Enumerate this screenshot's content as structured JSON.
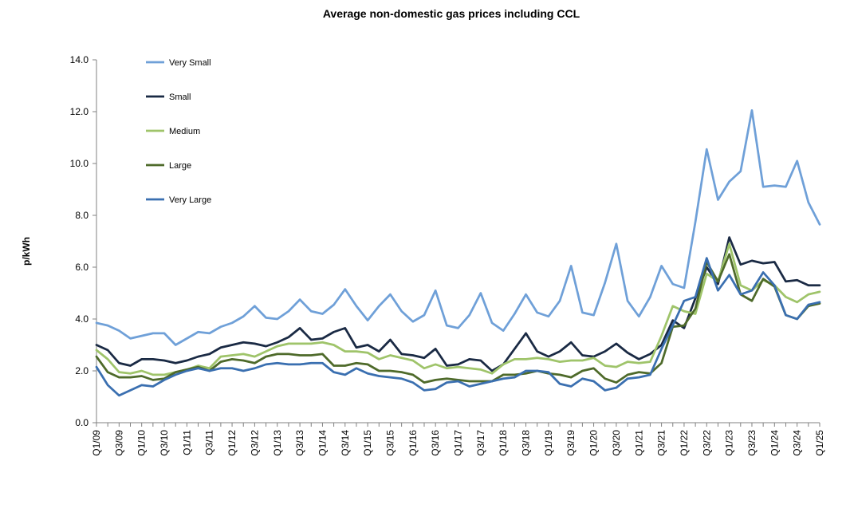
{
  "chart_data": {
    "type": "line",
    "title": "Average non-domestic gas prices including CCL",
    "xlabel": "",
    "ylabel": "p/kWh",
    "ylim": [
      0,
      14
    ],
    "yticks": [
      "0.0",
      "2.0",
      "4.0",
      "6.0",
      "8.0",
      "10.0",
      "12.0",
      "14.0"
    ],
    "grid": false,
    "legend_position": "top-left",
    "x": [
      "Q1/09",
      "Q2/09",
      "Q3/09",
      "Q4/09",
      "Q1/10",
      "Q2/10",
      "Q3/10",
      "Q4/10",
      "Q1/11",
      "Q2/11",
      "Q3/11",
      "Q4/11",
      "Q1/12",
      "Q2/12",
      "Q3/12",
      "Q4/12",
      "Q1/13",
      "Q2/13",
      "Q3/13",
      "Q4/13",
      "Q1/14",
      "Q2/14",
      "Q3/14",
      "Q4/14",
      "Q1/15",
      "Q2/15",
      "Q3/15",
      "Q4/15",
      "Q1/16",
      "Q2/16",
      "Q3/16",
      "Q4/16",
      "Q1/17",
      "Q2/17",
      "Q3/17",
      "Q4/17",
      "Q1/18",
      "Q2/18",
      "Q3/18",
      "Q4/18",
      "Q1/19",
      "Q2/19",
      "Q3/19",
      "Q4/19",
      "Q1/20",
      "Q2/20",
      "Q3/20",
      "Q4/20",
      "Q1/21",
      "Q2/21",
      "Q3/21",
      "Q4/21",
      "Q1/22",
      "Q2/22",
      "Q3/22",
      "Q4/22",
      "Q1/23",
      "Q2/23",
      "Q3/23",
      "Q4/23",
      "Q1/24",
      "Q2/24",
      "Q3/24",
      "Q4/24",
      "Q1/25"
    ],
    "xtick_labels": [
      "Q1/09",
      "Q3/09",
      "Q1/10",
      "Q3/10",
      "Q1/11",
      "Q3/11",
      "Q1/12",
      "Q3/12",
      "Q1/13",
      "Q3/13",
      "Q1/14",
      "Q3/14",
      "Q1/15",
      "Q3/15",
      "Q1/16",
      "Q3/16",
      "Q1/17",
      "Q3/17",
      "Q1/18",
      "Q3/18",
      "Q1/19",
      "Q3/19",
      "Q1/20",
      "Q3/20",
      "Q1/21",
      "Q3/21",
      "Q1/22",
      "Q3/22",
      "Q1/23",
      "Q3/23",
      "Q1/24",
      "Q3/24",
      "Q1/25"
    ],
    "series": [
      {
        "name": "Very Small",
        "color": "#6fa0d8",
        "values": [
          3.85,
          3.75,
          3.55,
          3.25,
          3.35,
          3.45,
          3.45,
          3.0,
          3.25,
          3.5,
          3.45,
          3.7,
          3.85,
          4.1,
          4.5,
          4.05,
          4.0,
          4.3,
          4.75,
          4.3,
          4.2,
          4.55,
          5.15,
          4.5,
          3.95,
          4.5,
          4.95,
          4.3,
          3.9,
          4.15,
          5.1,
          3.75,
          3.65,
          4.15,
          5.0,
          3.85,
          3.55,
          4.2,
          4.95,
          4.25,
          4.1,
          4.7,
          6.05,
          4.25,
          4.15,
          5.4,
          6.9,
          4.7,
          4.1,
          4.85,
          6.05,
          5.35,
          5.2,
          7.75,
          10.55,
          8.6,
          9.3,
          9.7,
          12.05,
          9.1,
          9.15,
          9.1,
          10.1,
          8.5,
          7.65
        ]
      },
      {
        "name": "Small",
        "color": "#1a2a44",
        "values": [
          3.0,
          2.8,
          2.3,
          2.2,
          2.45,
          2.45,
          2.4,
          2.3,
          2.4,
          2.55,
          2.65,
          2.9,
          3.0,
          3.1,
          3.05,
          2.95,
          3.1,
          3.3,
          3.65,
          3.2,
          3.25,
          3.5,
          3.65,
          2.9,
          3.0,
          2.75,
          3.2,
          2.65,
          2.6,
          2.5,
          2.85,
          2.2,
          2.25,
          2.45,
          2.4,
          2.0,
          2.25,
          2.85,
          3.45,
          2.75,
          2.55,
          2.75,
          3.1,
          2.6,
          2.55,
          2.75,
          3.05,
          2.7,
          2.45,
          2.65,
          3.0,
          3.95,
          3.65,
          4.8,
          6.0,
          5.35,
          7.15,
          6.1,
          6.25,
          6.15,
          6.2,
          5.45,
          5.5,
          5.3,
          5.3
        ]
      },
      {
        "name": "Medium",
        "color": "#9fc46a",
        "values": [
          2.8,
          2.45,
          1.95,
          1.9,
          2.0,
          1.85,
          1.85,
          1.95,
          2.05,
          2.2,
          2.1,
          2.55,
          2.6,
          2.65,
          2.55,
          2.75,
          2.95,
          3.05,
          3.05,
          3.05,
          3.1,
          3.0,
          2.75,
          2.75,
          2.7,
          2.45,
          2.6,
          2.5,
          2.4,
          2.1,
          2.25,
          2.1,
          2.15,
          2.1,
          2.05,
          1.9,
          2.25,
          2.45,
          2.45,
          2.5,
          2.45,
          2.35,
          2.4,
          2.4,
          2.5,
          2.2,
          2.15,
          2.35,
          2.3,
          2.35,
          3.35,
          4.5,
          4.3,
          4.2,
          5.75,
          5.45,
          6.9,
          5.3,
          5.1,
          5.5,
          5.3,
          4.85,
          4.65,
          4.95,
          5.05
        ]
      },
      {
        "name": "Large",
        "color": "#4e6a2a",
        "values": [
          2.55,
          1.95,
          1.75,
          1.75,
          1.8,
          1.65,
          1.7,
          1.95,
          2.05,
          2.15,
          2.0,
          2.35,
          2.45,
          2.4,
          2.3,
          2.55,
          2.65,
          2.65,
          2.6,
          2.6,
          2.65,
          2.2,
          2.2,
          2.3,
          2.25,
          2.0,
          2.0,
          1.95,
          1.85,
          1.55,
          1.65,
          1.7,
          1.65,
          1.6,
          1.6,
          1.6,
          1.85,
          1.85,
          1.9,
          2.0,
          1.9,
          1.85,
          1.75,
          2.0,
          2.1,
          1.7,
          1.55,
          1.85,
          1.95,
          1.9,
          2.3,
          3.7,
          3.75,
          4.4,
          6.2,
          5.45,
          6.5,
          4.95,
          4.7,
          5.55,
          5.25,
          4.15,
          4.0,
          4.5,
          4.6
        ]
      },
      {
        "name": "Very Large",
        "color": "#3a6fb0",
        "values": [
          2.15,
          1.45,
          1.05,
          1.25,
          1.45,
          1.4,
          1.65,
          1.85,
          2.0,
          2.1,
          2.0,
          2.1,
          2.1,
          2.0,
          2.1,
          2.25,
          2.3,
          2.25,
          2.25,
          2.3,
          2.3,
          1.95,
          1.85,
          2.1,
          1.9,
          1.8,
          1.75,
          1.7,
          1.55,
          1.25,
          1.3,
          1.55,
          1.6,
          1.4,
          1.5,
          1.6,
          1.7,
          1.75,
          2.0,
          2.0,
          1.95,
          1.5,
          1.4,
          1.7,
          1.6,
          1.25,
          1.35,
          1.7,
          1.75,
          1.85,
          2.85,
          3.75,
          4.7,
          4.85,
          6.35,
          5.1,
          5.7,
          4.95,
          5.1,
          5.8,
          5.3,
          4.15,
          4.0,
          4.55,
          4.65
        ]
      }
    ]
  }
}
